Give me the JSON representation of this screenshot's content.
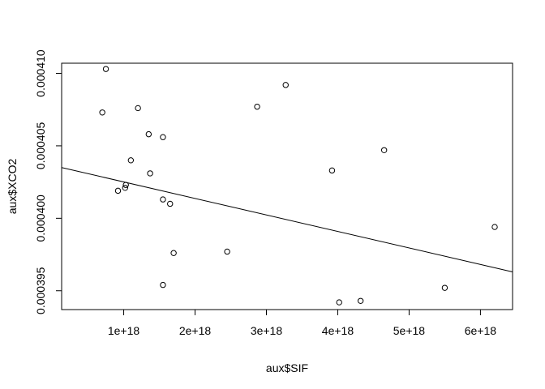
{
  "chart_data": {
    "type": "scatter",
    "title": "",
    "xlabel": "aux$SIF",
    "ylabel": "aux$XCO2",
    "xlim": [
      1.3e+17,
      6.45e+18
    ],
    "ylim": [
      0.0003937,
      0.0004107
    ],
    "x_ticks": [
      1e+18,
      2e+18,
      3e+18,
      4e+18,
      5e+18,
      6e+18
    ],
    "x_tick_labels": [
      "1e+18",
      "2e+18",
      "3e+18",
      "4e+18",
      "5e+18",
      "6e+18"
    ],
    "y_ticks": [
      0.000395,
      0.0004,
      0.000405,
      0.00041
    ],
    "y_tick_labels": [
      "0.000395",
      "0.000400",
      "0.000405",
      "0.000410"
    ],
    "grid": false,
    "legend": "none",
    "points": [
      {
        "x": 7.5e+17,
        "y": 0.0004103
      },
      {
        "x": 7e+17,
        "y": 0.0004073
      },
      {
        "x": 1.2e+18,
        "y": 0.0004076
      },
      {
        "x": 1.35e+18,
        "y": 0.0004058
      },
      {
        "x": 1.55e+18,
        "y": 0.0004056
      },
      {
        "x": 1.1e+18,
        "y": 0.000404
      },
      {
        "x": 1.37e+18,
        "y": 0.0004031
      },
      {
        "x": 1.03e+18,
        "y": 0.0004023
      },
      {
        "x": 1.02e+18,
        "y": 0.0004021
      },
      {
        "x": 9.2e+17,
        "y": 0.0004019
      },
      {
        "x": 1.55e+18,
        "y": 0.0004013
      },
      {
        "x": 1.65e+18,
        "y": 0.000401
      },
      {
        "x": 1.7e+18,
        "y": 0.0003976
      },
      {
        "x": 1.55e+18,
        "y": 0.0003954
      },
      {
        "x": 2.45e+18,
        "y": 0.0003977
      },
      {
        "x": 2.87e+18,
        "y": 0.0004077
      },
      {
        "x": 3.27e+18,
        "y": 0.0004092
      },
      {
        "x": 3.92e+18,
        "y": 0.0004033
      },
      {
        "x": 4.02e+18,
        "y": 0.0003942
      },
      {
        "x": 4.32e+18,
        "y": 0.0003943
      },
      {
        "x": 4.65e+18,
        "y": 0.0004047
      },
      {
        "x": 5.5e+18,
        "y": 0.0003952
      },
      {
        "x": 6.2e+18,
        "y": 0.0003994
      }
    ],
    "regression_line": {
      "x": [
        1.3e+17,
        6.45e+18
      ],
      "y": [
        0.0004035,
        0.0003963
      ]
    }
  }
}
